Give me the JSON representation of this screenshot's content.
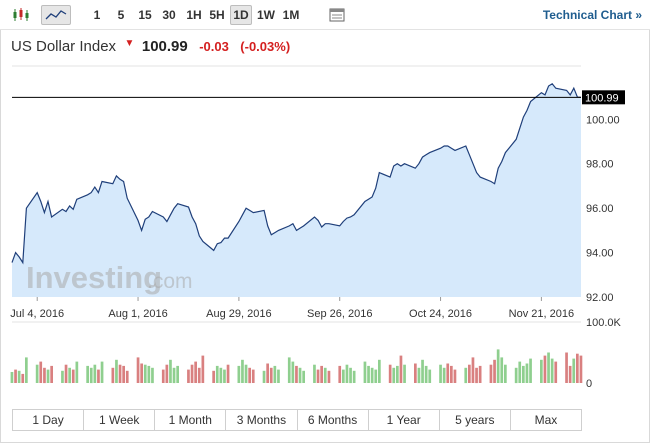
{
  "toolbar": {
    "icons": [
      "candlestick-icon",
      "area-chart-icon"
    ],
    "intervals": [
      {
        "label": "1",
        "active": false
      },
      {
        "label": "5",
        "active": false
      },
      {
        "label": "15",
        "active": false
      },
      {
        "label": "30",
        "active": false
      },
      {
        "label": "1H",
        "active": false
      },
      {
        "label": "5H",
        "active": false
      },
      {
        "label": "1D",
        "active": true
      },
      {
        "label": "1W",
        "active": false
      },
      {
        "label": "1M",
        "active": false
      }
    ],
    "table_icon": "table-icon",
    "technical_chart": "Technical Chart »"
  },
  "quote": {
    "name": "US Dollar Index",
    "arrow": "▼",
    "price": "100.99",
    "change": "-0.03",
    "change_pct": "(-0.03%)"
  },
  "watermark": {
    "main": "Investing",
    "suffix": ".com"
  },
  "ranges": [
    "1 Day",
    "1 Week",
    "1 Month",
    "3 Months",
    "6 Months",
    "1 Year",
    "5 years",
    "Max"
  ],
  "colors": {
    "line": "#1f3f7a",
    "area": "#d6e9fb",
    "volume_up": "#8fcf8f",
    "volume_down": "#d98080",
    "price_flag_bg": "#000000",
    "price_flag_text": "#ffffff",
    "negative": "#d42020"
  },
  "chart_data": {
    "type": "area",
    "x_ticks": [
      "Jul 4, 2016",
      "Aug 1, 2016",
      "Aug 29, 2016",
      "Sep 26, 2016",
      "Oct 24, 2016",
      "Nov 21, 2016"
    ],
    "y_ticks": [
      "100.00",
      "98.00",
      "96.00",
      "94.00",
      "92.00"
    ],
    "ylim": [
      92,
      102.4
    ],
    "current_price_label": "100.99",
    "current_price": 100.99,
    "grid": false,
    "series": [
      {
        "dates": [
          "2016-06-27",
          "2016-06-28",
          "2016-06-29",
          "2016-06-30",
          "2016-07-01",
          "2016-07-04",
          "2016-07-05",
          "2016-07-06",
          "2016-07-07",
          "2016-07-08",
          "2016-07-11",
          "2016-07-12",
          "2016-07-13",
          "2016-07-14",
          "2016-07-15",
          "2016-07-18",
          "2016-07-19",
          "2016-07-20",
          "2016-07-21",
          "2016-07-22",
          "2016-07-25",
          "2016-07-26",
          "2016-07-27",
          "2016-07-28",
          "2016-07-29",
          "2016-08-01",
          "2016-08-02",
          "2016-08-03",
          "2016-08-04",
          "2016-08-05",
          "2016-08-08",
          "2016-08-09",
          "2016-08-10",
          "2016-08-11",
          "2016-08-12",
          "2016-08-15",
          "2016-08-16",
          "2016-08-17",
          "2016-08-18",
          "2016-08-19",
          "2016-08-22",
          "2016-08-23",
          "2016-08-24",
          "2016-08-25",
          "2016-08-26",
          "2016-08-29",
          "2016-08-30",
          "2016-08-31",
          "2016-09-01",
          "2016-09-02",
          "2016-09-05",
          "2016-09-06",
          "2016-09-07",
          "2016-09-08",
          "2016-09-09",
          "2016-09-12",
          "2016-09-13",
          "2016-09-14",
          "2016-09-15",
          "2016-09-16",
          "2016-09-19",
          "2016-09-20",
          "2016-09-21",
          "2016-09-22",
          "2016-09-23",
          "2016-09-26",
          "2016-09-27",
          "2016-09-28",
          "2016-09-29",
          "2016-09-30",
          "2016-10-03",
          "2016-10-04",
          "2016-10-05",
          "2016-10-06",
          "2016-10-07",
          "2016-10-10",
          "2016-10-11",
          "2016-10-12",
          "2016-10-13",
          "2016-10-14",
          "2016-10-17",
          "2016-10-18",
          "2016-10-19",
          "2016-10-20",
          "2016-10-21",
          "2016-10-24",
          "2016-10-25",
          "2016-10-26",
          "2016-10-27",
          "2016-10-28",
          "2016-10-31",
          "2016-11-01",
          "2016-11-02",
          "2016-11-03",
          "2016-11-04",
          "2016-11-07",
          "2016-11-08",
          "2016-11-09",
          "2016-11-10",
          "2016-11-11",
          "2016-11-14",
          "2016-11-15",
          "2016-11-16",
          "2016-11-17",
          "2016-11-18",
          "2016-11-21",
          "2016-11-22",
          "2016-11-23",
          "2016-11-24",
          "2016-11-25",
          "2016-11-28",
          "2016-11-29",
          "2016-11-30",
          "2016-12-01",
          "2016-12-02"
        ],
        "values": [
          93.55,
          94.0,
          93.8,
          93.55,
          96.0,
          96.7,
          96.3,
          95.8,
          96.3,
          95.6,
          95.95,
          95.85,
          96.1,
          95.95,
          96.4,
          96.6,
          96.7,
          96.95,
          96.7,
          97.2,
          97.1,
          97.45,
          97.3,
          97.2,
          96.45,
          95.45,
          95.0,
          95.5,
          95.6,
          95.85,
          95.6,
          95.4,
          95.7,
          96.0,
          96.2,
          96.05,
          95.6,
          95.3,
          94.75,
          94.5,
          94.1,
          94.4,
          94.45,
          94.65,
          94.65,
          95.4,
          95.7,
          96.0,
          95.9,
          95.8,
          95.9,
          95.2,
          94.8,
          94.9,
          95.0,
          95.2,
          95.3,
          95.0,
          95.1,
          95.2,
          95.6,
          95.45,
          95.15,
          95.3,
          95.3,
          95.2,
          95.4,
          95.55,
          95.6,
          95.7,
          96.3,
          96.4,
          96.5,
          96.9,
          97.6,
          97.4,
          97.9,
          98.0,
          97.9,
          98.0,
          97.8,
          98.0,
          98.3,
          98.4,
          98.5,
          98.7,
          98.8,
          98.8,
          98.7,
          98.6,
          98.8,
          98.4,
          98.0,
          97.6,
          97.4,
          97.2,
          97.1,
          97.8,
          98.1,
          98.5,
          99.1,
          99.6,
          100.1,
          100.4,
          100.8,
          101.2,
          101.1,
          101.5,
          101.6,
          101.4,
          101.3,
          101.1,
          101.4,
          101.0,
          100.99
        ]
      }
    ],
    "volume_ticks": [
      "100.0K",
      "0"
    ],
    "volume_ylim": [
      0,
      100
    ],
    "volume": [
      18,
      22,
      20,
      15,
      42,
      30,
      35,
      25,
      22,
      28,
      20,
      30,
      25,
      22,
      35,
      28,
      25,
      30,
      22,
      35,
      25,
      38,
      30,
      28,
      20,
      42,
      32,
      30,
      28,
      25,
      22,
      30,
      38,
      25,
      28,
      22,
      30,
      35,
      25,
      45,
      20,
      28,
      25,
      22,
      30,
      28,
      38,
      30,
      25,
      22,
      20,
      32,
      25,
      28,
      22,
      42,
      35,
      28,
      25,
      20,
      30,
      22,
      28,
      25,
      20,
      28,
      22,
      30,
      25,
      20,
      35,
      28,
      25,
      22,
      38,
      30,
      25,
      28,
      45,
      30,
      32,
      25,
      38,
      28,
      22,
      30,
      25,
      32,
      28,
      22,
      25,
      30,
      42,
      25,
      28,
      30,
      38,
      55,
      42,
      30,
      25,
      35,
      28,
      32,
      40,
      38,
      45,
      50,
      40,
      35,
      50,
      28,
      40,
      48,
      45
    ],
    "volume_up": [
      true,
      false,
      true,
      false,
      true,
      true,
      false,
      false,
      true,
      false,
      true,
      false,
      true,
      false,
      true,
      true,
      true,
      true,
      false,
      true,
      false,
      true,
      false,
      false,
      false,
      false,
      false,
      true,
      true,
      true,
      false,
      false,
      true,
      true,
      true,
      false,
      false,
      false,
      false,
      false,
      false,
      true,
      true,
      true,
      false,
      true,
      true,
      true,
      false,
      false,
      true,
      false,
      false,
      true,
      true,
      true,
      true,
      false,
      true,
      true,
      true,
      false,
      false,
      true,
      false,
      false,
      true,
      true,
      true,
      true,
      true,
      true,
      true,
      true,
      true,
      false,
      true,
      true,
      false,
      true,
      false,
      true,
      true,
      true,
      true,
      true,
      true,
      false,
      false,
      false,
      true,
      false,
      false,
      false,
      false,
      false,
      false,
      true,
      true,
      true,
      true,
      true,
      true,
      true,
      true,
      true,
      false,
      true,
      true,
      false,
      false,
      false,
      true,
      false,
      false
    ]
  }
}
